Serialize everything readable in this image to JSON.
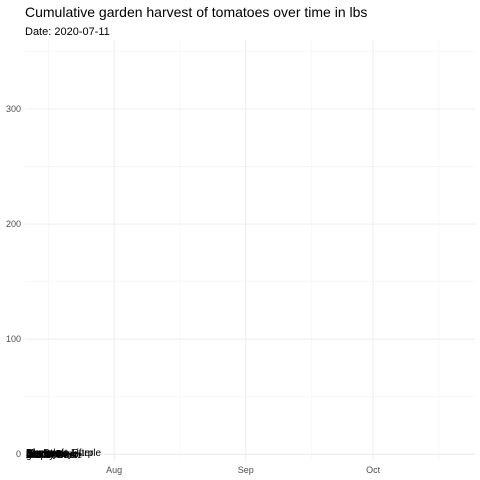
{
  "chart_data": {
    "type": "line",
    "title": "Cumulative garden harvest of tomatoes over time in lbs",
    "subtitle": "Date: 2020-07-11",
    "xlabel": "",
    "ylabel": "",
    "xlim": [
      "2020-07-11",
      "2020-10-25"
    ],
    "ylim": [
      -5,
      360
    ],
    "x_ticks": [
      {
        "value": "2020-08-01",
        "label": "Aug"
      },
      {
        "value": "2020-09-01",
        "label": "Sep"
      },
      {
        "value": "2020-10-01",
        "label": "Oct"
      }
    ],
    "y_ticks": [
      0,
      100,
      200,
      300
    ],
    "grid": true,
    "legend": "none",
    "series": [
      {
        "values": [
          {
            "x": "2020-07-11",
            "y": 0
          }
        ],
        "label_text": "Amish Paste"
      },
      {
        "values": [
          {
            "x": "2020-07-11",
            "y": 0
          }
        ],
        "label_text": "Better Boy"
      },
      {
        "values": [
          {
            "x": "2020-07-11",
            "y": 0
          }
        ],
        "label_text": "Big Beef"
      },
      {
        "values": [
          {
            "x": "2020-07-11",
            "y": 0
          }
        ],
        "label_text": "Bonny Best"
      },
      {
        "values": [
          {
            "x": "2020-07-11",
            "y": 0
          }
        ],
        "label_text": "Brandywine"
      },
      {
        "values": [
          {
            "x": "2020-07-11",
            "y": 0
          }
        ],
        "label_text": "Cherokee Purple"
      },
      {
        "values": [
          {
            "x": "2020-07-11",
            "y": 0
          }
        ],
        "label_text": "grape"
      },
      {
        "values": [
          {
            "x": "2020-07-11",
            "y": 0
          }
        ],
        "label_text": "Jet Star"
      },
      {
        "values": [
          {
            "x": "2020-07-11",
            "y": 0
          }
        ],
        "label_text": "Mortgage Lifter"
      },
      {
        "values": [
          {
            "x": "2020-07-11",
            "y": 0
          }
        ],
        "label_text": "Old German"
      }
    ]
  }
}
